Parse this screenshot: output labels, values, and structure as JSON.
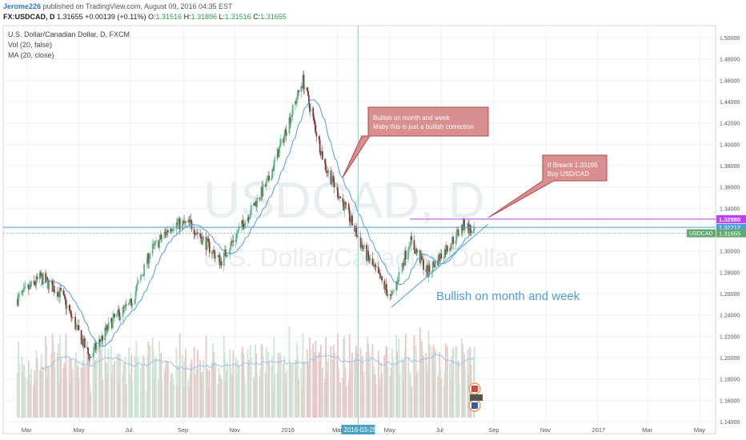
{
  "header": {
    "author": "Jerome226",
    "published": "published on TradingView.com, August 09, 2016 04:35 EST",
    "symbol": "FX:USDCAD, D",
    "last": "1.31655",
    "change": "+0.00139 (+0.11%)",
    "open_label": "O:",
    "open": "1.31516",
    "high_label": "H:",
    "high": "1.31896",
    "low_label": "L:",
    "low": "1.31516",
    "close_label": "C:",
    "close": "1.31655"
  },
  "legend": {
    "title": "U.S. Dollar/Canadian Dollar, D, FXCM",
    "vol": "Vol (20, false)",
    "ma": "MA (20, close)"
  },
  "watermark": {
    "symbol": "USDCAD, D",
    "name": "U.S. Dollar/Canadian Dollar"
  },
  "annotations": {
    "callout1_line1": "Bullish on month and week",
    "callout1_line2": "Maby this is just a bullish correction",
    "callout2_line1": "If Breack 1.33195",
    "callout2_line2": "Buy USD/CAD",
    "bottom_text": "Bullish on month and week"
  },
  "colors": {
    "up": "#53b987",
    "down": "#8b3a3a",
    "ma": "#4f9ed8",
    "callout_fill": "#d98f8f",
    "callout_border": "#b54545",
    "level_line": "#bf40ff",
    "level_tag": "#bf40ff",
    "trend_line": "#4f9ed8",
    "last_tag": "#5faa6e",
    "crosshair": "#7fd4c4"
  },
  "price_tags": {
    "level": "1.32980",
    "level_value": 1.3298,
    "level2": "1.32212",
    "last_symbol": "USDCAD",
    "last": "1.31655",
    "last_value": 1.31655
  },
  "crosshair_date": "2016-03-25",
  "chart_data": {
    "type": "candlestick",
    "x_axis_labels": [
      "Mar",
      "May",
      "Jul",
      "Sep",
      "Nov",
      "2016",
      "Mar",
      "2016-03-25",
      "May",
      "Jul",
      "Sep",
      "Nov",
      "2017",
      "Mar",
      "May"
    ],
    "y_axis_labels": [
      "1.50000",
      "1.48000",
      "1.46000",
      "1.44000",
      "1.42000",
      "1.40000",
      "1.38000",
      "1.36000",
      "1.34000",
      "1.32000",
      "1.30000",
      "1.28000",
      "1.26000",
      "1.24000",
      "1.22000",
      "1.20000",
      "1.18000",
      "1.16000",
      "1.14000"
    ],
    "ylim": [
      1.14,
      1.51
    ],
    "price_path": [
      {
        "date": "2015-02-18",
        "value": 1.255
      },
      {
        "date": "2015-03-17",
        "value": 1.275
      },
      {
        "date": "2015-04-10",
        "value": 1.26
      },
      {
        "date": "2015-05-14",
        "value": 1.2
      },
      {
        "date": "2015-06-10",
        "value": 1.235
      },
      {
        "date": "2015-07-01",
        "value": 1.25
      },
      {
        "date": "2015-07-25",
        "value": 1.3
      },
      {
        "date": "2015-08-20",
        "value": 1.325
      },
      {
        "date": "2015-09-10",
        "value": 1.325
      },
      {
        "date": "2015-10-15",
        "value": 1.29
      },
      {
        "date": "2015-11-10",
        "value": 1.325
      },
      {
        "date": "2015-12-10",
        "value": 1.365
      },
      {
        "date": "2016-01-20",
        "value": 1.46
      },
      {
        "date": "2016-02-15",
        "value": 1.38
      },
      {
        "date": "2016-03-10",
        "value": 1.34
      },
      {
        "date": "2016-04-01",
        "value": 1.3
      },
      {
        "date": "2016-05-03",
        "value": 1.255
      },
      {
        "date": "2016-05-25",
        "value": 1.31
      },
      {
        "date": "2016-06-15",
        "value": 1.28
      },
      {
        "date": "2016-07-10",
        "value": 1.305
      },
      {
        "date": "2016-07-28",
        "value": 1.325
      },
      {
        "date": "2016-08-09",
        "value": 1.31655
      }
    ],
    "horizontal_levels": [
      1.3298,
      1.32212
    ],
    "trend_line": [
      {
        "date": "2016-05-03",
        "value": 1.247
      },
      {
        "date": "2016-08-25",
        "value": 1.325
      }
    ]
  }
}
